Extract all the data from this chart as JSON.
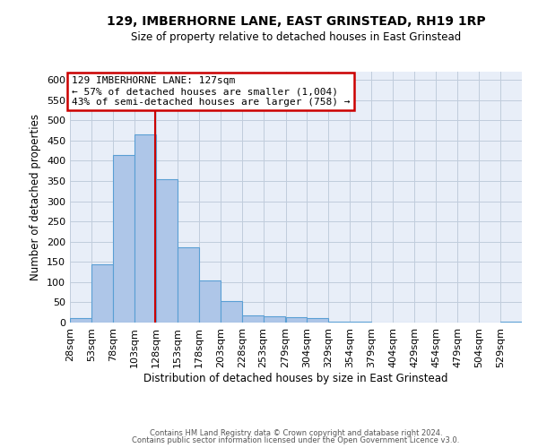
{
  "title": "129, IMBERHORNE LANE, EAST GRINSTEAD, RH19 1RP",
  "subtitle": "Size of property relative to detached houses in East Grinstead",
  "xlabel": "Distribution of detached houses by size in East Grinstead",
  "ylabel": "Number of detached properties",
  "bin_labels": [
    "28sqm",
    "53sqm",
    "78sqm",
    "103sqm",
    "128sqm",
    "153sqm",
    "178sqm",
    "203sqm",
    "228sqm",
    "253sqm",
    "279sqm",
    "304sqm",
    "329sqm",
    "354sqm",
    "379sqm",
    "404sqm",
    "429sqm",
    "454sqm",
    "479sqm",
    "504sqm",
    "529sqm"
  ],
  "bin_edges": [
    28,
    53,
    78,
    103,
    128,
    153,
    178,
    203,
    228,
    253,
    279,
    304,
    329,
    354,
    379,
    404,
    429,
    454,
    479,
    504,
    529,
    554
  ],
  "bar_heights": [
    10,
    145,
    415,
    465,
    355,
    185,
    103,
    53,
    18,
    15,
    13,
    10,
    3,
    2,
    1,
    1,
    1,
    1,
    0,
    0,
    3
  ],
  "bar_color": "#aec6e8",
  "bar_edge_color": "#5a9fd4",
  "vline_x": 127,
  "vline_color": "#cc0000",
  "ylim": [
    0,
    620
  ],
  "yticks": [
    0,
    50,
    100,
    150,
    200,
    250,
    300,
    350,
    400,
    450,
    500,
    550,
    600
  ],
  "annotation_title": "129 IMBERHORNE LANE: 127sqm",
  "annotation_line1": "← 57% of detached houses are smaller (1,004)",
  "annotation_line2": "43% of semi-detached houses are larger (758) →",
  "annotation_box_color": "#cc0000",
  "footer_line1": "Contains HM Land Registry data © Crown copyright and database right 2024.",
  "footer_line2": "Contains public sector information licensed under the Open Government Licence v3.0.",
  "background_color": "#e8eef8",
  "grid_color": "#c0ccdc"
}
